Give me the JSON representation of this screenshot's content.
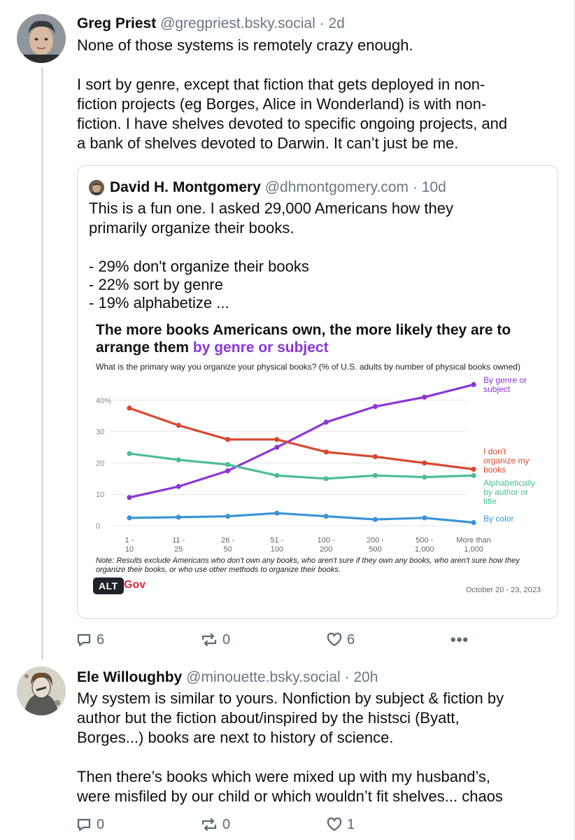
{
  "post1": {
    "name": "Greg Priest",
    "handle": "@gregpriest.bsky.social",
    "separator": "·",
    "time": "2d",
    "lines_para1": [
      "None of those systems is remotely crazy enough."
    ],
    "lines_para2": [
      "I sort by genre, except that fiction that gets deployed in non-",
      "fiction projects (eg Borges, Alice in Wonderland) is with non-",
      "fiction. I have shelves devoted to specific ongoing projects, and",
      "a bank of shelves devoted to Darwin. It can’t just be me."
    ],
    "replies": "6",
    "reposts": "0",
    "likes": "6",
    "more": "•••"
  },
  "quote": {
    "name": "David H. Montgomery",
    "handle": "@dhmontgomery.com",
    "separator": "·",
    "time": "10d",
    "lines_para1": [
      "This is a fun one. I asked 29,000 Americans how they",
      "primarily organize their books."
    ],
    "lines_para2": [
      "- 29% don't organize their books",
      "- 22% sort by genre",
      "- 19% alphabetize ..."
    ],
    "alt_label": "ALT",
    "brand": "Gov"
  },
  "chart_data": {
    "type": "line",
    "title_part1": "The more books Americans own, the more likely they are to",
    "title_part2": "arrange them",
    "title_highlight": "by genre or subject",
    "subtitle": "What is the primary way you organize your physical books? (% of U.S. adults by number of physical books owned)",
    "categories": [
      [
        "1 -",
        "10"
      ],
      [
        "11 -",
        "25"
      ],
      [
        "26 -",
        "50"
      ],
      [
        "51 -",
        "100"
      ],
      [
        "100 -",
        "200"
      ],
      [
        "200 -",
        "500"
      ],
      [
        "500 -",
        "1,000"
      ],
      [
        "More than",
        "1,000"
      ]
    ],
    "yticks": [
      "0",
      "10",
      "20",
      "30",
      "40%"
    ],
    "ylim": [
      0,
      45
    ],
    "series": [
      {
        "name": [
          "By genre or",
          "subject"
        ],
        "color": "#8a36d9",
        "values": [
          9,
          12.5,
          17.5,
          25,
          33,
          38,
          41,
          45
        ]
      },
      {
        "name": [
          "I don't",
          "organize my",
          "books"
        ],
        "color": "#d8472f",
        "values": [
          37.5,
          32,
          27.5,
          27.5,
          23.5,
          22,
          20,
          18
        ]
      },
      {
        "name": [
          "Alphabetically",
          "by author or",
          "title"
        ],
        "color": "#4cbc99",
        "values": [
          23,
          21,
          19.5,
          16,
          15,
          16,
          15.5,
          16
        ]
      },
      {
        "name": [
          "By color"
        ],
        "color": "#3b94d8",
        "values": [
          2.5,
          2.7,
          3,
          4,
          3,
          2,
          2.5,
          1
        ]
      }
    ],
    "note": "Note: Results exclude Americans who don't own any books, who aren't sure if they own any books, who aren't sure how they organize their books, or who use other methods to organize their books.",
    "date": "October 20 - 23, 2023"
  },
  "post2": {
    "name": "Ele Willoughby",
    "handle": "@minouette.bsky.social",
    "separator": "·",
    "time": "20h",
    "lines_para1": [
      "My system is similar to yours. Nonfiction by subject & fiction by",
      "author but the fiction about/inspired by the histsci (Byatt,",
      "Borges...) books are next to history of science."
    ],
    "lines_para2": [
      "Then there’s books which were mixed up with my husband’s,",
      "were misfiled by our child or which wouldn’t fit shelves... chaos"
    ],
    "replies": "0",
    "reposts": "0",
    "likes": "1"
  }
}
